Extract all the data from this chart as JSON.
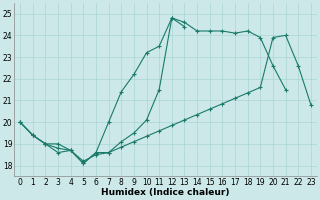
{
  "xlabel": "Humidex (Indice chaleur)",
  "bg_color": "#cce8e8",
  "grid_color": "#aad4d4",
  "line_color": "#1a7a6a",
  "xlim": [
    -0.5,
    23.5
  ],
  "ylim": [
    17.5,
    25.5
  ],
  "yticks": [
    18,
    19,
    20,
    21,
    22,
    23,
    24,
    25
  ],
  "xticks": [
    0,
    1,
    2,
    3,
    4,
    5,
    6,
    7,
    8,
    9,
    10,
    11,
    12,
    13,
    14,
    15,
    16,
    17,
    18,
    19,
    20,
    21,
    22,
    23
  ],
  "line1_x": [
    0,
    1,
    2,
    3,
    4,
    5,
    6,
    7,
    8,
    9,
    10,
    11,
    12,
    13,
    14,
    15,
    16,
    17,
    18,
    19,
    20,
    21
  ],
  "line1_y": [
    20.0,
    19.4,
    19.0,
    18.6,
    18.7,
    18.1,
    18.6,
    18.6,
    19.1,
    19.5,
    20.1,
    21.5,
    24.8,
    24.6,
    24.2,
    24.2,
    24.2,
    24.1,
    24.2,
    23.9,
    22.6,
    21.5
  ],
  "line2_x": [
    0,
    1,
    2,
    3,
    4,
    5,
    6,
    7,
    8,
    9,
    10,
    11,
    12,
    13
  ],
  "line2_y": [
    20.0,
    19.4,
    19.0,
    19.0,
    18.7,
    18.1,
    18.6,
    20.0,
    21.4,
    22.2,
    23.2,
    23.5,
    24.8,
    24.4
  ],
  "line3_x": [
    0,
    1,
    2,
    3,
    4,
    5,
    6,
    7,
    8,
    9,
    10,
    11,
    12,
    13,
    14,
    15,
    16,
    17,
    18,
    19,
    20,
    21,
    22,
    23
  ],
  "line3_y": [
    20.0,
    19.4,
    19.0,
    18.8,
    18.7,
    18.2,
    18.5,
    18.6,
    18.85,
    19.1,
    19.35,
    19.6,
    19.85,
    20.1,
    20.35,
    20.6,
    20.85,
    21.1,
    21.35,
    21.6,
    23.9,
    24.0,
    22.6,
    20.8
  ]
}
